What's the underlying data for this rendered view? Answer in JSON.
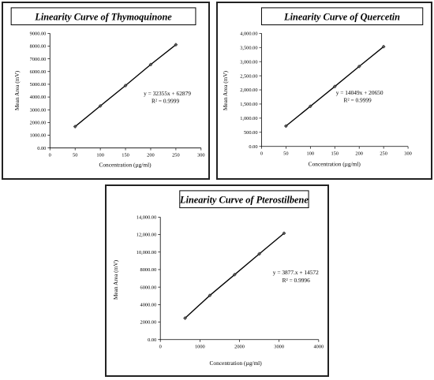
{
  "chart_data": [
    {
      "type": "scatter",
      "title": "Linearity Curve of Thymoquinone",
      "xlabel": "Concentration (µg/ml)",
      "ylabel": "Mean Area (mV)",
      "xlim": [
        0,
        300
      ],
      "ylim": [
        0,
        9000
      ],
      "xticks": [
        "0",
        "50",
        "100",
        "150",
        "200",
        "250",
        "300"
      ],
      "yticks": [
        "0.00",
        "1000.00",
        "2000.00",
        "3000.00",
        "4000.00",
        "5000.00",
        "6000.00",
        "7000.00",
        "8000.00",
        "9000.00"
      ],
      "series": [
        {
          "x": [
            50,
            100,
            150,
            200,
            250
          ],
          "y": [
            1680,
            3300,
            4900,
            6550,
            8110
          ]
        }
      ],
      "equation": "y = 32355x + 62879",
      "r2": "R² = 0.9999",
      "grid": false,
      "legend": "none"
    },
    {
      "type": "scatter",
      "title": "Linearity Curve of Quercetin",
      "xlabel": "Concentration (µg/ml)",
      "ylabel": "Mean Area (mV)",
      "xlim": [
        0,
        300
      ],
      "ylim": [
        0,
        4000
      ],
      "xticks": [
        "0",
        "50",
        "100",
        "150",
        "200",
        "250",
        "300"
      ],
      "yticks": [
        "0.00",
        "500.00",
        "1,000.00",
        "1,500.00",
        "2,000.00",
        "2,500.00",
        "3,000.00",
        "3,500.00",
        "4,000.00"
      ],
      "series": [
        {
          "x": [
            50,
            100,
            150,
            200,
            250
          ],
          "y": [
            720,
            1420,
            2120,
            2830,
            3530
          ]
        }
      ],
      "equation": "y = 14049x + 20650",
      "r2": "R² = 0.9999",
      "grid": false,
      "legend": "none"
    },
    {
      "type": "scatter",
      "title": "Linearity Curve of Pterostilbene",
      "xlabel": "Concentration (µg/ml)",
      "ylabel": "Mean Area (mV)",
      "xlim": [
        0,
        4000
      ],
      "ylim": [
        0,
        14000
      ],
      "xticks": [
        "0",
        "1000",
        "2000",
        "3000",
        "4000"
      ],
      "yticks": [
        "0.00",
        "2000.00",
        "4000.00",
        "6000.00",
        "8000.00",
        "10,000.00",
        "12,000.00",
        "14,000.00"
      ],
      "series": [
        {
          "x": [
            625,
            1250,
            1875,
            2500,
            3125
          ],
          "y": [
            2450,
            5050,
            7420,
            9800,
            12150
          ]
        }
      ],
      "equation": "y = 3877.x + 14572",
      "r2": "R² = 0.9996",
      "grid": false,
      "legend": "none"
    }
  ]
}
